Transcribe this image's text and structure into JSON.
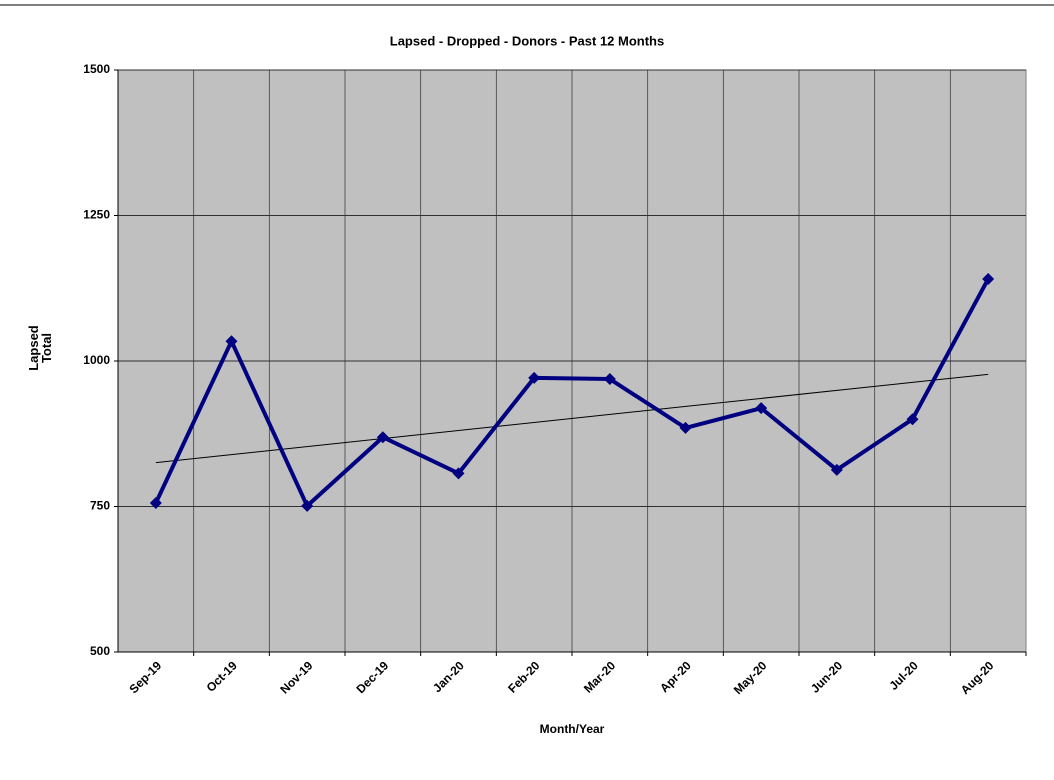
{
  "chart_data": {
    "type": "line",
    "title": "Lapsed - Dropped - Donors - Past 12 Months",
    "xlabel": "Month/Year",
    "ylabel": "Lapsed Total",
    "categories": [
      "Sep-19",
      "Oct-19",
      "Nov-19",
      "Dec-19",
      "Jan-20",
      "Feb-20",
      "Mar-20",
      "Apr-20",
      "May-20",
      "Jun-20",
      "Jul-20",
      "Aug-20"
    ],
    "series": [
      {
        "name": "Lapsed",
        "color": "#000080",
        "values": [
          756,
          1034,
          751,
          869,
          807,
          971,
          969,
          885,
          919,
          813,
          900,
          1141
        ]
      }
    ],
    "trendline": "linear",
    "ylim": [
      500,
      1500
    ],
    "yticks": [
      500,
      750,
      1000,
      1250,
      1500
    ],
    "grid": true,
    "plot_background": "#c0c0c0"
  }
}
